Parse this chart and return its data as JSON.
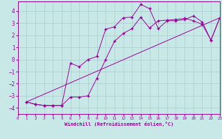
{
  "xlabel": "Windchill (Refroidissement éolien,°C)",
  "bg_color": "#c8e8e8",
  "line_color": "#990099",
  "grid_color": "#aacccc",
  "xlim": [
    0,
    23
  ],
  "ylim": [
    -4.5,
    4.8
  ],
  "xticks": [
    0,
    1,
    2,
    3,
    4,
    5,
    6,
    7,
    8,
    9,
    10,
    11,
    12,
    13,
    14,
    15,
    16,
    17,
    18,
    19,
    20,
    21,
    22,
    23
  ],
  "yticks": [
    -4,
    -3,
    -2,
    -1,
    0,
    1,
    2,
    3,
    4
  ],
  "line1_x": [
    1,
    2,
    3,
    4,
    5,
    6,
    7,
    8,
    9,
    10,
    11,
    12,
    13,
    14,
    15,
    16,
    17,
    18,
    19,
    20,
    21,
    22,
    23
  ],
  "line1_y": [
    -3.5,
    -3.7,
    -3.8,
    -3.8,
    -3.8,
    -3.1,
    -3.1,
    -3.0,
    -1.55,
    0.0,
    1.5,
    2.15,
    2.55,
    3.5,
    2.6,
    3.2,
    3.25,
    3.3,
    3.4,
    3.2,
    2.9,
    1.6,
    3.45
  ],
  "line2_x": [
    1,
    2,
    3,
    4,
    5,
    6,
    7,
    8,
    9,
    10,
    11,
    12,
    13,
    14,
    15,
    16,
    17,
    18,
    19,
    20,
    21,
    22,
    23
  ],
  "line2_y": [
    -3.5,
    -3.7,
    -3.8,
    -3.8,
    -3.8,
    -0.3,
    -0.6,
    0.0,
    0.25,
    2.5,
    2.7,
    3.45,
    3.5,
    4.55,
    4.2,
    2.55,
    3.2,
    3.2,
    3.3,
    3.6,
    3.1,
    1.6,
    3.45
  ],
  "line3_x": [
    1,
    23
  ],
  "line3_y": [
    -3.5,
    3.45
  ]
}
